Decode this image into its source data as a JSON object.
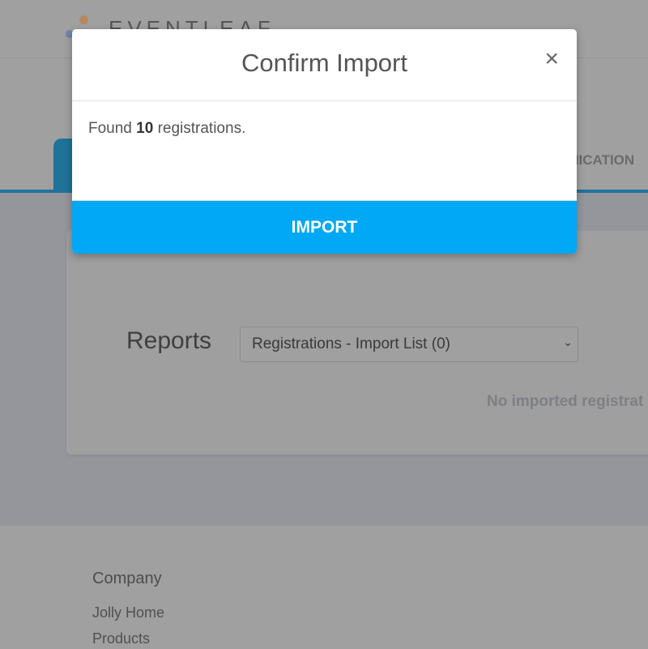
{
  "header": {
    "logo_text": "EVENTLEAF"
  },
  "tabs": {
    "partial_tab_label": "UNICATION"
  },
  "reports": {
    "label": "Reports",
    "select_value": "Registrations - Import List (0)",
    "empty_message": "No imported registrat"
  },
  "footer": {
    "title": "Company",
    "links": [
      "Jolly Home",
      "Products"
    ]
  },
  "modal": {
    "title": "Confirm Import",
    "close_icon": "×",
    "body_prefix": "Found",
    "count": "10",
    "body_suffix": "registrations.",
    "import_label": "IMPORT",
    "button_color": "#00a8f5"
  }
}
